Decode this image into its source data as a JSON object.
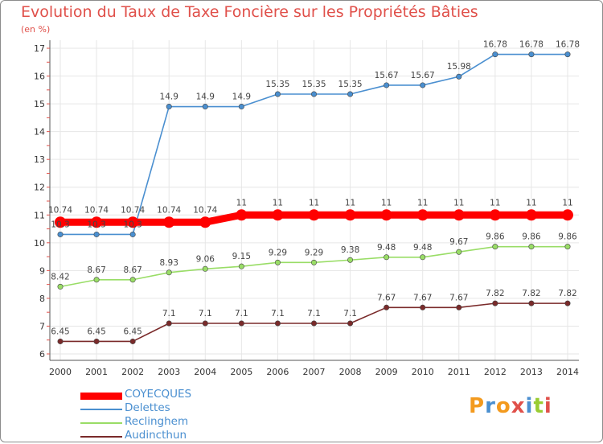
{
  "chart_data": {
    "type": "line",
    "title": "Evolution du Taux de Taxe Foncière sur les Propriétés Bâties",
    "subtitle": "(en %)",
    "x": [
      "2000",
      "2001",
      "2002",
      "2003",
      "2004",
      "2005",
      "2006",
      "2007",
      "2008",
      "2009",
      "2010",
      "2011",
      "2012",
      "2013",
      "2014"
    ],
    "ylim": [
      6,
      17
    ],
    "yticks": [
      "6",
      "7",
      "8",
      "9",
      "10",
      "11",
      "12",
      "13",
      "14",
      "15",
      "16",
      "17"
    ],
    "grid": true,
    "legend_position": "bottom-left",
    "series": [
      {
        "name": "COYECQUES",
        "color": "#ff0000",
        "values": [
          10.74,
          10.74,
          10.74,
          10.74,
          10.74,
          11,
          11,
          11,
          11,
          11,
          11,
          11,
          11,
          11,
          11
        ],
        "labels": [
          "10.74",
          "10.74",
          "10.74",
          "10.74",
          "10.74",
          "11",
          "11",
          "11",
          "11",
          "11",
          "11",
          "11",
          "11",
          "11",
          "11"
        ]
      },
      {
        "name": "Delettes",
        "color": "#4a8fd0",
        "values": [
          10.3,
          10.3,
          10.3,
          14.9,
          14.9,
          14.9,
          15.35,
          15.35,
          15.35,
          15.67,
          15.67,
          15.98,
          16.78,
          16.78,
          16.78
        ],
        "labels": [
          "10.3",
          "10.3",
          "10.3",
          "14.9",
          "14.9",
          "14.9",
          "15.35",
          "15.35",
          "15.35",
          "15.67",
          "15.67",
          "15.98",
          "16.78",
          "16.78",
          "16.78"
        ]
      },
      {
        "name": "Reclinghem",
        "color": "#99dd66",
        "values": [
          8.42,
          8.67,
          8.67,
          8.93,
          9.06,
          9.15,
          9.29,
          9.29,
          9.38,
          9.48,
          9.48,
          9.67,
          9.86,
          9.86,
          9.86
        ],
        "labels": [
          "8.42",
          "8.67",
          "8.67",
          "8.93",
          "9.06",
          "9.15",
          "9.29",
          "9.29",
          "9.38",
          "9.48",
          "9.48",
          "9.67",
          "9.86",
          "9.86",
          "9.86"
        ]
      },
      {
        "name": "Audincthun",
        "color": "#7a2a2a",
        "values": [
          6.45,
          6.45,
          6.45,
          7.1,
          7.1,
          7.1,
          7.1,
          7.1,
          7.1,
          7.67,
          7.67,
          7.67,
          7.82,
          7.82,
          7.82
        ],
        "labels": [
          "6.45",
          "6.45",
          "6.45",
          "7.1",
          "7.1",
          "7.1",
          "7.1",
          "7.1",
          "7.1",
          "7.67",
          "7.67",
          "7.67",
          "7.82",
          "7.82",
          "7.82"
        ]
      }
    ]
  },
  "logo": {
    "text": "Proxiti",
    "colors": [
      "#f39a1e",
      "#4a8fd0",
      "#f39a1e",
      "#e0504a",
      "#4a8fd0",
      "#99cc33",
      "#e0504a"
    ]
  }
}
